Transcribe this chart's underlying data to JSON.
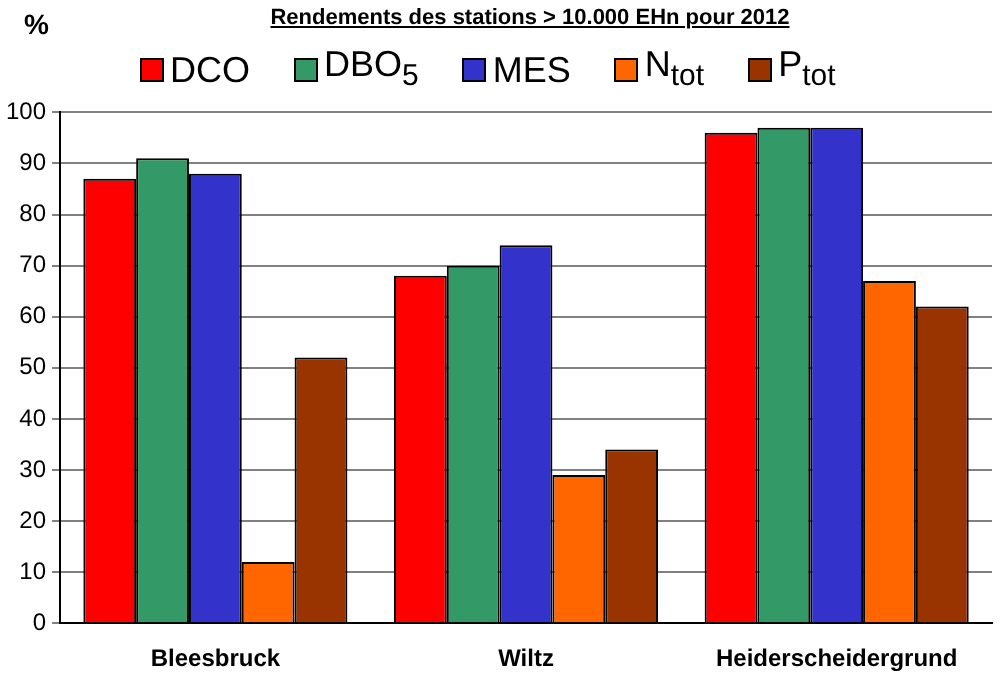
{
  "chart_data": {
    "type": "bar",
    "title": "Rendements des stations > 10.000 EHn pour 2012",
    "ylabel": "%",
    "categories": [
      "Bleesbruck",
      "Wiltz",
      "Heiderscheidergrund"
    ],
    "series": [
      {
        "name": "DCO",
        "color": "#ff0000",
        "values": [
          87,
          68,
          96
        ]
      },
      {
        "name": "DBO$_{5}$",
        "color": "#339966",
        "values": [
          91,
          70,
          97
        ]
      },
      {
        "name": "MES",
        "color": "#3333cc",
        "values": [
          88,
          74,
          97
        ]
      },
      {
        "name": "N$_{tot}$",
        "color": "#ff6600",
        "values": [
          12,
          29,
          67
        ]
      },
      {
        "name": "P$_{tot}$",
        "color": "#993300",
        "values": [
          52,
          34,
          62
        ]
      }
    ],
    "ylim": [
      0,
      100
    ],
    "yticks": [
      0,
      10,
      20,
      30,
      40,
      50,
      60,
      70,
      80,
      90,
      100
    ],
    "grid": "y",
    "legend": "top"
  }
}
